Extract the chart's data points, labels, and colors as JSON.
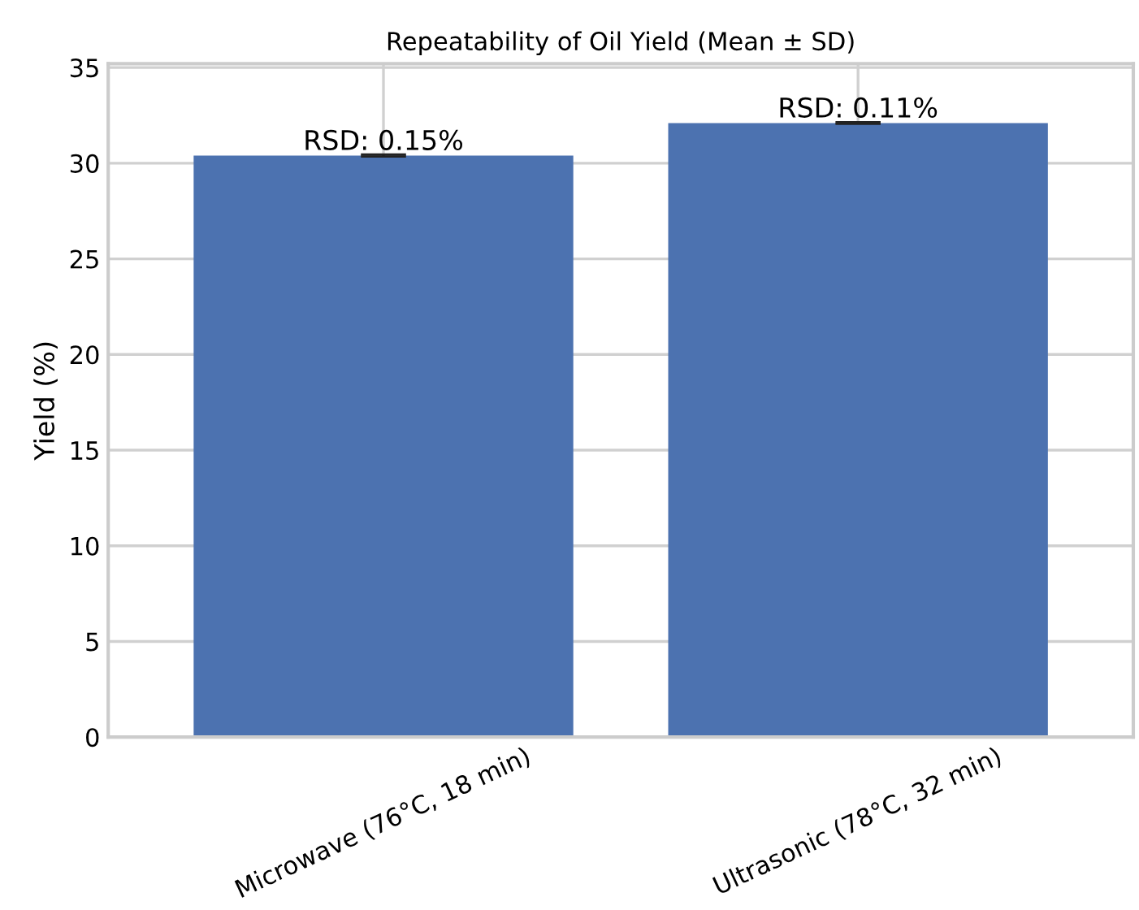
{
  "chart_data": {
    "type": "bar",
    "title": "Repeatability of Oil Yield (Mean ± SD)",
    "ylabel": "Yield (%)",
    "categories": [
      "Microwave (76°C, 18 min)",
      "Ultrasonic (78°C, 32 min)"
    ],
    "values": [
      30.4,
      32.1
    ],
    "errors": [
      0.05,
      0.04
    ],
    "color": "#4c72b0",
    "annotations": [
      {
        "text": "RSD: 0.15%",
        "x": "Microwave (76°C, 18 min)",
        "y": 30.4
      },
      {
        "text": "RSD: 0.11%",
        "x": "Ultrasonic (78°C, 32 min)",
        "y": 32.1
      }
    ],
    "ylim": [
      0,
      35.2
    ],
    "yticks": [
      0,
      5,
      10,
      15,
      20,
      25,
      30,
      35
    ],
    "grid": true
  }
}
